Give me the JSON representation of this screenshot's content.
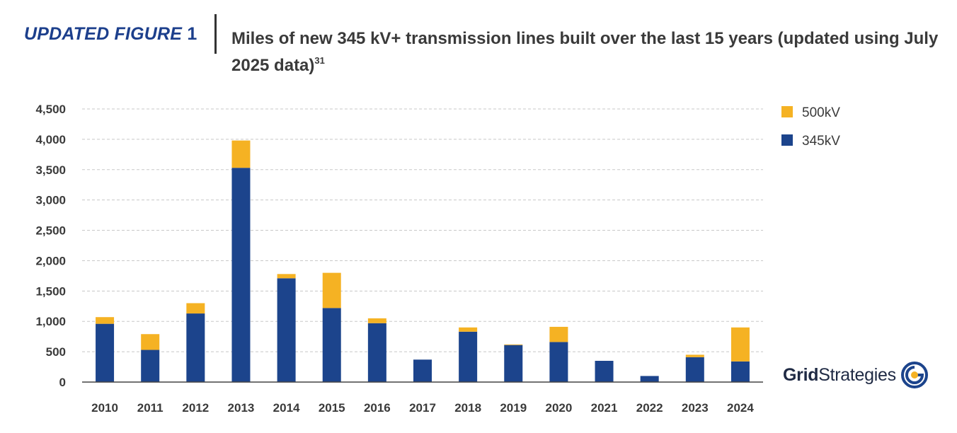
{
  "header": {
    "figure_label_word": "UPDATED FIGURE",
    "figure_label_number": "1",
    "title": "Miles of new 345 kV+ transmission lines built over the last 15 years (updated using July 2025 data)",
    "title_footnote": "31"
  },
  "logo": {
    "bold_part": "Grid",
    "regular_part": "Strategies",
    "icon": "grid-strategies-logo-icon"
  },
  "colors": {
    "kv345": "#1c448c",
    "kv500": "#f5b223",
    "grid": "#c8c8c8",
    "axis": "#444444",
    "tick_text": "#3a3a3a"
  },
  "chart_data": {
    "type": "bar",
    "stacked": true,
    "categories": [
      "2010",
      "2011",
      "2012",
      "2013",
      "2014",
      "2015",
      "2016",
      "2017",
      "2018",
      "2019",
      "2020",
      "2021",
      "2022",
      "2023",
      "2024"
    ],
    "series": [
      {
        "name": "345kV",
        "values": [
          960,
          530,
          1130,
          3530,
          1710,
          1220,
          970,
          370,
          830,
          610,
          660,
          350,
          100,
          410,
          340
        ]
      },
      {
        "name": "500kV",
        "values": [
          110,
          260,
          170,
          450,
          70,
          580,
          80,
          0,
          70,
          10,
          250,
          0,
          0,
          40,
          560
        ]
      }
    ],
    "ylim": [
      0,
      4500
    ],
    "yticks": [
      0,
      500,
      1000,
      1500,
      2000,
      2500,
      3000,
      3500,
      4000,
      4500
    ],
    "ytick_labels": [
      "0",
      "500",
      "1,000",
      "1,500",
      "2,000",
      "2,500",
      "3,000",
      "3,500",
      "4,000",
      "4,500"
    ],
    "grid": true,
    "legend": {
      "placement": "top-right",
      "entries": [
        "500kV",
        "345kV"
      ]
    },
    "title": "",
    "xlabel": "",
    "ylabel": ""
  }
}
